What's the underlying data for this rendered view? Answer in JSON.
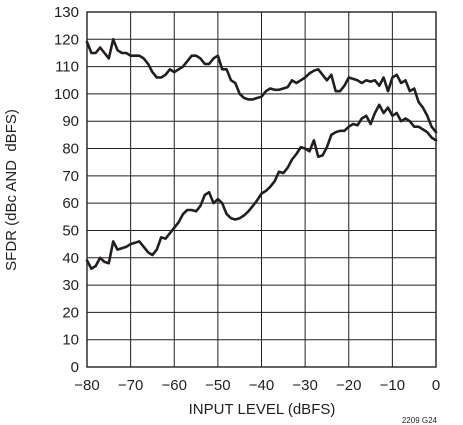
{
  "chart_data": {
    "type": "line",
    "title": "",
    "xlabel": "INPUT LEVEL (dBFS)",
    "ylabel": "SFDR (dBc AND  dBFS)",
    "xlim": [
      -80,
      0
    ],
    "ylim": [
      0,
      130
    ],
    "x_ticks": [
      -80,
      -70,
      -60,
      -50,
      -40,
      -30,
      -20,
      -10,
      0
    ],
    "x_tick_labels": [
      "−80",
      "−70",
      "−60",
      "−50",
      "−40",
      "−30",
      "−20",
      "−10",
      "0"
    ],
    "y_ticks": [
      0,
      10,
      20,
      30,
      40,
      50,
      60,
      70,
      80,
      90,
      100,
      110,
      120,
      130
    ],
    "y_tick_labels": [
      "0",
      "10",
      "20",
      "30",
      "40",
      "50",
      "60",
      "70",
      "80",
      "90",
      "100",
      "110",
      "120",
      "130"
    ],
    "grid": true,
    "line_color": "#231f20",
    "annotation": "2209 G24",
    "series": [
      {
        "x": [
          -80,
          -79,
          -78,
          -77,
          -76,
          -75,
          -74,
          -73,
          -72,
          -71,
          -70,
          -69,
          -68,
          -67,
          -66,
          -65,
          -64,
          -63,
          -62,
          -61,
          -60,
          -59,
          -58,
          -57,
          -56,
          -55,
          -54,
          -53,
          -52,
          -51,
          -50,
          -49,
          -48,
          -47,
          -46,
          -45,
          -44,
          -43,
          -42,
          -41,
          -40,
          -39,
          -38,
          -37,
          -36,
          -35,
          -34,
          -33,
          -32,
          -31,
          -30,
          -29,
          -28,
          -27,
          -26,
          -25,
          -24,
          -23,
          -22,
          -21,
          -20,
          -19,
          -18,
          -17,
          -16,
          -15,
          -14,
          -13,
          -12,
          -11,
          -10,
          -9,
          -8,
          -7,
          -6,
          -5,
          -4,
          -3,
          -2,
          -1,
          0
        ],
        "y": [
          119,
          115,
          115,
          117,
          115,
          113,
          120,
          116,
          115,
          115,
          114,
          114,
          114,
          113,
          111,
          108,
          106,
          106,
          107,
          109,
          108,
          109,
          110,
          112,
          114,
          114,
          113,
          111,
          111,
          113,
          114,
          109,
          109,
          105,
          104,
          100,
          98.5,
          98,
          98,
          98.5,
          99,
          101,
          102,
          101.5,
          101.5,
          102,
          102.5,
          105,
          104,
          105,
          106,
          107.5,
          108.5,
          109,
          107,
          105,
          107,
          101,
          101,
          103,
          106,
          105.5,
          105,
          104,
          105,
          104.5,
          105,
          103,
          106,
          101,
          106,
          107,
          104,
          105,
          101,
          102,
          97,
          95,
          92,
          88,
          86
        ]
      },
      {
        "x": [
          -80,
          -79,
          -78,
          -77,
          -76,
          -75,
          -74,
          -73,
          -72,
          -71,
          -70,
          -69,
          -68,
          -67,
          -66,
          -65,
          -64,
          -63,
          -62,
          -61,
          -60,
          -59,
          -58,
          -57,
          -56,
          -55,
          -54,
          -53,
          -52,
          -51,
          -50,
          -49,
          -48,
          -47,
          -46,
          -45,
          -44,
          -43,
          -42,
          -41,
          -40,
          -39,
          -38,
          -37,
          -36,
          -35,
          -34,
          -33,
          -32,
          -31,
          -30,
          -29,
          -28,
          -27,
          -26,
          -25,
          -24,
          -23,
          -22,
          -21,
          -20,
          -19,
          -18,
          -17,
          -16,
          -15,
          -14,
          -13,
          -12,
          -11,
          -10,
          -9,
          -8,
          -7,
          -6,
          -5,
          -4,
          -3,
          -2,
          -1,
          0
        ],
        "y": [
          39,
          36,
          37,
          40,
          38.5,
          38,
          46,
          43,
          43.5,
          44,
          45,
          45.5,
          46,
          44,
          42,
          41,
          43,
          47.5,
          47,
          49,
          51,
          53,
          56,
          57.5,
          57.5,
          57,
          59,
          63,
          64,
          60,
          61.5,
          60,
          56,
          54.5,
          54,
          54.5,
          55.5,
          57,
          59,
          61,
          63.5,
          64.5,
          66,
          68,
          71.5,
          71,
          73,
          76,
          78,
          80.5,
          80,
          79,
          83,
          77,
          77.5,
          80.5,
          85,
          86,
          86.5,
          86.5,
          88,
          89,
          88.5,
          91,
          92,
          89,
          93,
          96,
          93,
          95,
          92,
          93,
          90,
          91,
          90,
          88,
          88,
          87,
          86,
          84,
          83
        ]
      }
    ]
  }
}
